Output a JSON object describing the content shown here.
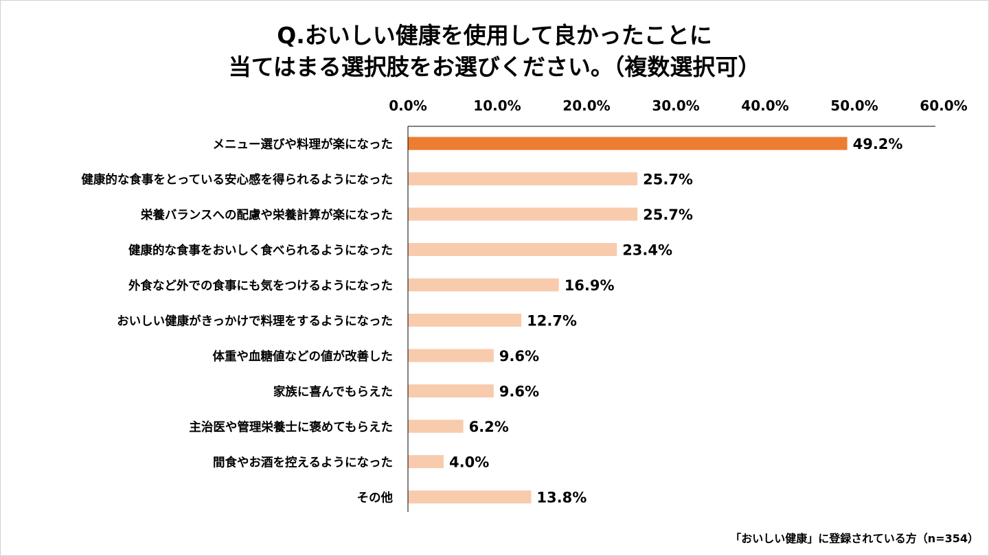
{
  "title_lines": [
    "Q.おいしい健康を使用して良かったことに",
    "当てはまる選択肢をお選びください。（複数選択可）"
  ],
  "footnote": "「おいしい健康」に登録されている方（n=354）",
  "colors": {
    "highlight": "#ED7D31",
    "bar": "#F8CBAD",
    "axis": "#000000"
  },
  "chart_data": {
    "type": "bar",
    "orientation": "horizontal",
    "title": "Q.おいしい健康を使用して良かったことに当てはまる選択肢をお選びください。（複数選択可）",
    "xlim": [
      0,
      60
    ],
    "ticks": [
      0,
      10,
      20,
      30,
      40,
      50,
      60
    ],
    "tick_labels": [
      "0.0%",
      "10.0%",
      "20.0%",
      "30.0%",
      "40.0%",
      "50.0%",
      "60.0%"
    ],
    "axis_position": "top",
    "grid": false,
    "categories": [
      "メニュー選びや料理が楽になった",
      "健康的な食事をとっている安心感を得られるようになった",
      "栄養バランスへの配慮や栄養計算が楽になった",
      "健康的な食事をおいしく食べられるようになった",
      "外食など外での食事にも気をつけるようになった",
      "おいしい健康がきっかけで料理をするようになった",
      "体重や血糖値などの値が改善した",
      "家族に喜んでもらえた",
      "主治医や管理栄養士に褒めてもらえた",
      "間食やお酒を控えるようになった",
      "その他"
    ],
    "values": [
      49.2,
      25.7,
      25.7,
      23.4,
      16.9,
      12.7,
      9.6,
      9.6,
      6.2,
      4.0,
      13.8
    ],
    "value_labels": [
      "49.2%",
      "25.7%",
      "25.7%",
      "23.4%",
      "16.9%",
      "12.7%",
      "9.6%",
      "9.6%",
      "6.2%",
      "4.0%",
      "13.8%"
    ],
    "highlight_index": 0
  }
}
